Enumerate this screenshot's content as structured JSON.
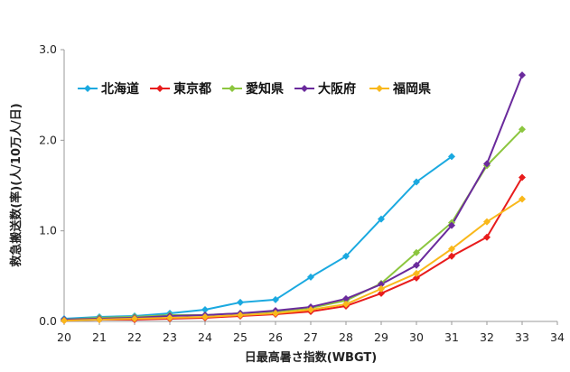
{
  "chart_data": {
    "type": "line",
    "title": "",
    "xlabel": "日最高暑さ指数(WBGT)",
    "ylabel": "救急搬送数(率)(人/10万人/日)",
    "xlim": [
      20,
      34
    ],
    "ylim": [
      0,
      3.0
    ],
    "x_ticks": [
      20,
      21,
      22,
      23,
      24,
      25,
      26,
      27,
      28,
      29,
      30,
      31,
      32,
      33,
      34
    ],
    "y_ticks": [
      {
        "value": 0,
        "label": "0.0"
      },
      {
        "value": 1,
        "label": "1.0"
      },
      {
        "value": 2,
        "label": "2.0"
      },
      {
        "value": 3,
        "label": "3.0"
      }
    ],
    "grid": false,
    "legend_position": "top-left",
    "series": [
      {
        "name": "北海道",
        "color": "#1aa9e0",
        "marker": "diamond",
        "x": [
          20,
          21,
          22,
          23,
          24,
          25,
          26,
          27,
          28,
          29,
          30,
          31
        ],
        "y": [
          0.03,
          0.05,
          0.06,
          0.09,
          0.13,
          0.21,
          0.24,
          0.49,
          0.72,
          1.13,
          1.54,
          1.82
        ]
      },
      {
        "name": "東京都",
        "color": "#e81c1c",
        "marker": "diamond",
        "x": [
          20,
          21,
          22,
          23,
          24,
          25,
          26,
          27,
          28,
          29,
          30,
          31,
          32,
          33
        ],
        "y": [
          0.01,
          0.02,
          0.02,
          0.03,
          0.04,
          0.06,
          0.08,
          0.11,
          0.17,
          0.31,
          0.48,
          0.72,
          0.93,
          1.59
        ]
      },
      {
        "name": "愛知県",
        "color": "#8cc63f",
        "marker": "diamond",
        "x": [
          20,
          21,
          22,
          23,
          24,
          25,
          26,
          27,
          28,
          29,
          30,
          31,
          32,
          33
        ],
        "y": [
          0.02,
          0.04,
          0.05,
          0.07,
          0.07,
          0.09,
          0.11,
          0.15,
          0.23,
          0.42,
          0.76,
          1.09,
          1.72,
          2.12
        ]
      },
      {
        "name": "大阪府",
        "color": "#6a2a9c",
        "marker": "diamond",
        "x": [
          20,
          21,
          22,
          23,
          24,
          25,
          26,
          27,
          28,
          29,
          30,
          31,
          32,
          33
        ],
        "y": [
          0.02,
          0.03,
          0.04,
          0.06,
          0.07,
          0.09,
          0.12,
          0.16,
          0.25,
          0.41,
          0.62,
          1.06,
          1.74,
          2.72
        ]
      },
      {
        "name": "福岡県",
        "color": "#f9b81b",
        "marker": "diamond",
        "x": [
          20,
          21,
          22,
          23,
          24,
          25,
          26,
          27,
          28,
          29,
          30,
          31,
          32,
          33
        ],
        "y": [
          0.01,
          0.02,
          0.03,
          0.04,
          0.05,
          0.07,
          0.09,
          0.13,
          0.19,
          0.36,
          0.53,
          0.8,
          1.1,
          1.35
        ]
      }
    ]
  }
}
